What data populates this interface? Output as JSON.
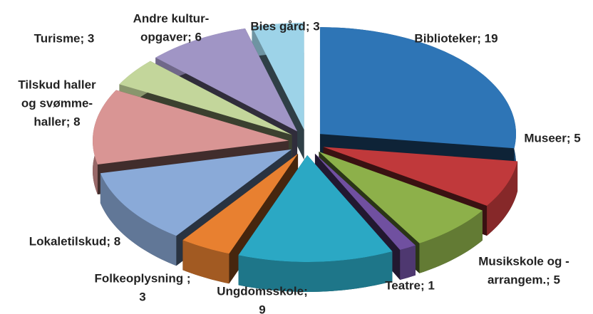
{
  "chart_data": {
    "type": "pie",
    "categories": [
      "Biblioteker",
      "Museer",
      "Musikskole og arrangem.",
      "Teatre",
      "Ungdomsskole",
      "Folkeoplysning",
      "Lokaletilskud",
      "Tilskud haller og svømmehaller",
      "Turisme",
      "Andre kulturopgaver",
      "Bies gård"
    ],
    "values": [
      19,
      5,
      5,
      1,
      9,
      3,
      8,
      8,
      3,
      6,
      3
    ],
    "value_labels": [
      [
        "Biblioteker; 19"
      ],
      [
        "Museer; 5"
      ],
      [
        "Musikskole og -",
        "arrangem.; 5"
      ],
      [
        "Teatre; 1"
      ],
      [
        "Ungdomsskole;",
        "9"
      ],
      [
        "Folkeoplysning ;",
        "3"
      ],
      [
        "Lokaletilskud; 8"
      ],
      [
        "Tilskud haller",
        "og svømme-",
        "haller; 8"
      ],
      [
        "Turisme; 3"
      ],
      [
        "Andre kultur-",
        "opgaver; 6"
      ],
      [
        "Bies gård; 3"
      ]
    ],
    "colors": [
      "#2e75b6",
      "#c0393b",
      "#8db04a",
      "#7050a0",
      "#2ba8c4",
      "#e88030",
      "#8aaad8",
      "#d99594",
      "#c3d69b",
      "#a095c5",
      "#9dd3e8"
    ]
  }
}
